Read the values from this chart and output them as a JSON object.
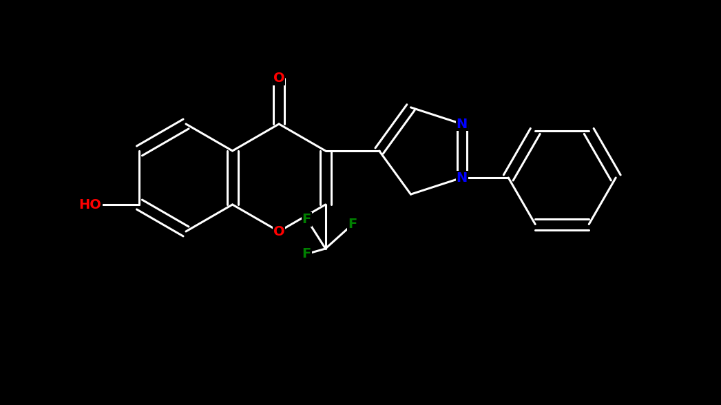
{
  "background_color": "#000000",
  "bond_color": "#ffffff",
  "atom_colors": {
    "O": "#ff0000",
    "N": "#0000ff",
    "F": "#008000",
    "C": "#ffffff",
    "H": "#ffffff"
  },
  "line_width": 2.2,
  "font_size": 14,
  "font_weight": "bold"
}
